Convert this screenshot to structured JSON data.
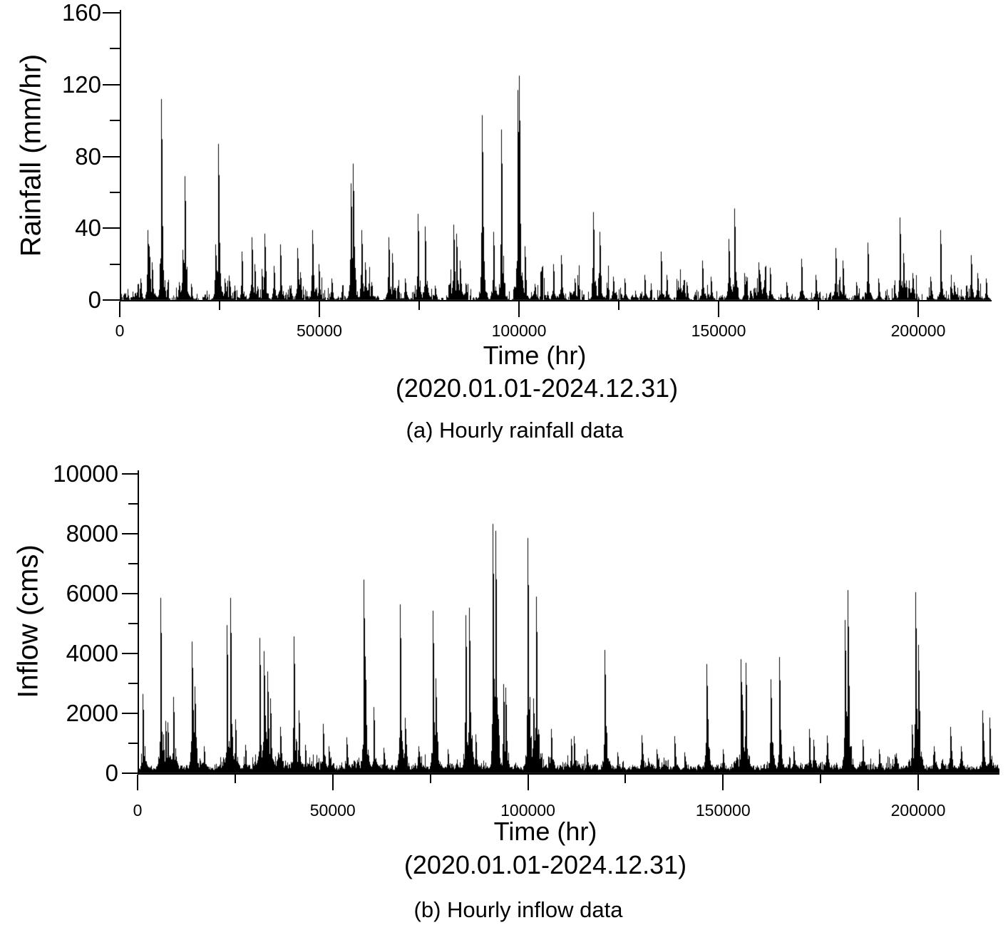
{
  "figure": {
    "background": "#ffffff",
    "ink_color": "#000000"
  },
  "chart_data": [
    {
      "id": "rainfall",
      "type": "bar",
      "title": "(a) Hourly rainfall data",
      "ylabel": "Rainfall (mm/hr)",
      "xlabel": "Time (hr)",
      "xlabel_sub": "(2020.01.01-2024.12.31)",
      "xlim": [
        0,
        218400
      ],
      "ylim": [
        0,
        160
      ],
      "grid": false,
      "legend": "none",
      "x_major_ticks": {
        "values": [
          0,
          50000,
          100000,
          150000,
          200000
        ],
        "labels": [
          "0",
          "50000",
          "100000",
          "150000",
          "200000"
        ]
      },
      "x_minor_ticks": [
        25000,
        75000,
        125000,
        175000
      ],
      "y_major_ticks": {
        "values": [
          0,
          40,
          80,
          120,
          160
        ],
        "labels": [
          "0",
          "40",
          "80",
          "120",
          "160"
        ]
      },
      "y_minor_ticks": [
        20,
        60,
        100,
        140
      ],
      "x_unit": "hr",
      "y_unit": "mm/hr",
      "peak_events": [
        [
          5100,
          12
        ],
        [
          6900,
          39
        ],
        [
          7400,
          30
        ],
        [
          8100,
          21
        ],
        [
          10300,
          112
        ],
        [
          14800,
          10
        ],
        [
          15800,
          28
        ],
        [
          16300,
          69
        ],
        [
          17800,
          9
        ],
        [
          24000,
          31
        ],
        [
          24700,
          87
        ],
        [
          26300,
          12
        ],
        [
          30500,
          27
        ],
        [
          33000,
          35
        ],
        [
          33700,
          20
        ],
        [
          36200,
          37
        ],
        [
          38500,
          19
        ],
        [
          40100,
          31
        ],
        [
          42500,
          8
        ],
        [
          44500,
          29
        ],
        [
          48300,
          39
        ],
        [
          49800,
          20
        ],
        [
          53000,
          12
        ],
        [
          57800,
          65
        ],
        [
          58400,
          76
        ],
        [
          60600,
          39
        ],
        [
          61500,
          21
        ],
        [
          63000,
          10
        ],
        [
          67300,
          35
        ],
        [
          68300,
          26
        ],
        [
          71500,
          12
        ],
        [
          74700,
          48
        ],
        [
          76500,
          41
        ],
        [
          79000,
          8
        ],
        [
          83600,
          42
        ],
        [
          84300,
          37
        ],
        [
          85200,
          22
        ],
        [
          90700,
          103
        ],
        [
          93500,
          38
        ],
        [
          95500,
          95
        ],
        [
          99600,
          117
        ],
        [
          100000,
          125
        ],
        [
          101500,
          30
        ],
        [
          104000,
          9
        ],
        [
          108500,
          20
        ],
        [
          110500,
          25
        ],
        [
          114000,
          12
        ],
        [
          118500,
          49
        ],
        [
          120100,
          38
        ],
        [
          123500,
          13
        ],
        [
          126500,
          12
        ],
        [
          131500,
          14
        ],
        [
          135600,
          27
        ],
        [
          137000,
          14
        ],
        [
          142000,
          10
        ],
        [
          145900,
          22
        ],
        [
          148000,
          13
        ],
        [
          152500,
          34
        ],
        [
          153900,
          51
        ],
        [
          160000,
          21
        ],
        [
          162800,
          18
        ],
        [
          167000,
          10
        ],
        [
          170700,
          23
        ],
        [
          174300,
          14
        ],
        [
          179200,
          29
        ],
        [
          181000,
          22
        ],
        [
          184500,
          10
        ],
        [
          187400,
          32
        ],
        [
          190000,
          12
        ],
        [
          195400,
          46
        ],
        [
          196300,
          26
        ],
        [
          198500,
          15
        ],
        [
          203000,
          13
        ],
        [
          205500,
          39
        ],
        [
          209000,
          10
        ],
        [
          213300,
          25
        ],
        [
          214800,
          15
        ],
        [
          217000,
          12
        ]
      ],
      "noise": {
        "seed": 11,
        "cell": 6,
        "sharp": 3.0,
        "base": 0,
        "base_var": 0,
        "cluster_amp": 26,
        "spike_prob": 0.13,
        "spike_amp": 7,
        "floor": 0.7,
        "rise": 1.6,
        "fall": 2.1
      }
    },
    {
      "id": "inflow",
      "type": "bar",
      "title": "(b) Hourly inflow data",
      "ylabel": "Inflow (cms)",
      "xlabel": "Time (hr)",
      "xlabel_sub": "(2020.01.01-2024.12.31)",
      "xlim": [
        0,
        220800
      ],
      "ylim": [
        0,
        10000
      ],
      "grid": false,
      "legend": "none",
      "x_major_ticks": {
        "values": [
          0,
          50000,
          100000,
          150000,
          200000
        ],
        "labels": [
          "0",
          "50000",
          "100000",
          "150000",
          "200000"
        ]
      },
      "x_minor_ticks": [
        25000,
        75000,
        125000,
        175000
      ],
      "y_major_ticks": {
        "values": [
          0,
          2000,
          4000,
          6000,
          8000,
          10000
        ],
        "labels": [
          "0",
          "2000",
          "4000",
          "6000",
          "8000",
          "10000"
        ]
      },
      "y_minor_ticks": [
        1000,
        3000,
        5000,
        7000,
        9000
      ],
      "x_unit": "hr",
      "y_unit": "cms",
      "peak_events": [
        [
          1200,
          2650
        ],
        [
          5900,
          5860
        ],
        [
          7100,
          1750
        ],
        [
          7700,
          1700
        ],
        [
          9100,
          2550
        ],
        [
          13900,
          4400
        ],
        [
          14600,
          2900
        ],
        [
          17000,
          900
        ],
        [
          22900,
          4950
        ],
        [
          23800,
          5860
        ],
        [
          25000,
          1800
        ],
        [
          27500,
          950
        ],
        [
          31200,
          4520
        ],
        [
          32300,
          4080
        ],
        [
          33200,
          3400
        ],
        [
          34000,
          2500
        ],
        [
          36500,
          1550
        ],
        [
          40000,
          4570
        ],
        [
          41200,
          2100
        ],
        [
          43000,
          950
        ],
        [
          47500,
          1650
        ],
        [
          49000,
          900
        ],
        [
          53500,
          1200
        ],
        [
          57900,
          6470
        ],
        [
          58300,
          3900
        ],
        [
          60500,
          2210
        ],
        [
          63000,
          850
        ],
        [
          67300,
          5640
        ],
        [
          68500,
          1850
        ],
        [
          72000,
          900
        ],
        [
          75700,
          5430
        ],
        [
          76300,
          3170
        ],
        [
          79500,
          800
        ],
        [
          84000,
          5280
        ],
        [
          85000,
          5530
        ],
        [
          86500,
          1300
        ],
        [
          90900,
          8330
        ],
        [
          91700,
          8100
        ],
        [
          93700,
          2980
        ],
        [
          94300,
          2860
        ],
        [
          99900,
          7860
        ],
        [
          101300,
          2500
        ],
        [
          102100,
          5900
        ],
        [
          106000,
          1480
        ],
        [
          111000,
          1150
        ],
        [
          111800,
          1240
        ],
        [
          115000,
          800
        ],
        [
          119700,
          4120
        ],
        [
          123000,
          700
        ],
        [
          129200,
          1270
        ],
        [
          133000,
          800
        ],
        [
          137500,
          1240
        ],
        [
          140000,
          700
        ],
        [
          145700,
          3650
        ],
        [
          150000,
          800
        ],
        [
          154500,
          3810
        ],
        [
          154900,
          2620
        ],
        [
          155800,
          3690
        ],
        [
          162200,
          3140
        ],
        [
          164400,
          3880
        ],
        [
          168000,
          900
        ],
        [
          172100,
          1480
        ],
        [
          173200,
          1120
        ],
        [
          176700,
          1260
        ],
        [
          181100,
          5120
        ],
        [
          182000,
          6120
        ],
        [
          185700,
          1120
        ],
        [
          190000,
          800
        ],
        [
          198300,
          1620
        ],
        [
          199300,
          6050
        ],
        [
          200000,
          4290
        ],
        [
          204000,
          900
        ],
        [
          208300,
          1550
        ],
        [
          211000,
          900
        ],
        [
          216500,
          2100
        ],
        [
          218200,
          1860
        ]
      ],
      "noise": {
        "seed": 23,
        "cell": 6,
        "sharp": 3.0,
        "base": 105,
        "base_var": 175,
        "cluster_amp": 620,
        "spike_prob": 0.05,
        "spike_amp": 600,
        "floor": 45,
        "rise": 1.4,
        "fall": 2.6
      }
    }
  ]
}
